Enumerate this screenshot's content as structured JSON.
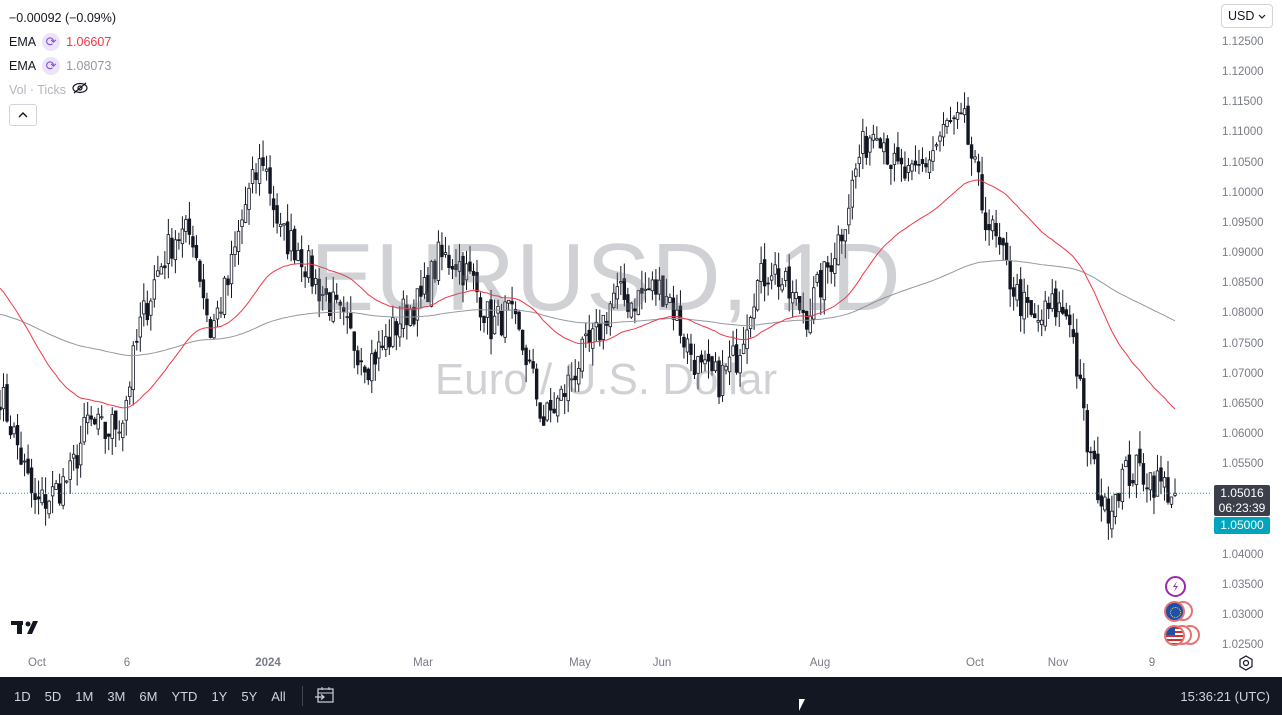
{
  "legend": {
    "change": "−0.00092 (−0.09%)",
    "ema1": {
      "label": "EMA",
      "value": "1.06607",
      "color": "#f23645"
    },
    "ema2": {
      "label": "EMA",
      "value": "1.08073",
      "color": "#9598a1"
    },
    "vol": "Vol · Ticks",
    "vol_icon": "eye-off-icon",
    "collapse_icon": "chevron-up-icon"
  },
  "currency_selector": {
    "value": "USD"
  },
  "watermark": {
    "symbol": "EURUSD, 1D",
    "description": "Euro / U.S. Dollar"
  },
  "price_labels": {
    "last": "1.05016",
    "countdown": "06:23:39",
    "bid": "1.05000"
  },
  "colors": {
    "last_line": "#00a5bd",
    "bid_label": "#00a5bd",
    "ema_fast": "#f23645",
    "ema_slow": "#9598a1"
  },
  "bottom_bar": {
    "ranges": [
      "1D",
      "5D",
      "1M",
      "3M",
      "6M",
      "YTD",
      "1Y",
      "5Y",
      "All"
    ],
    "goto_icon": "calendar-goto-icon",
    "clock": "15:36:21 (UTC)"
  },
  "chart_data": {
    "type": "candlestick",
    "symbol": "EURUSD",
    "interval": "1D",
    "y_ticks": [
      "1.12500",
      "1.12000",
      "1.11500",
      "1.11000",
      "1.10500",
      "1.10000",
      "1.09500",
      "1.09000",
      "1.08500",
      "1.08000",
      "1.07500",
      "1.07000",
      "1.06500",
      "1.06000",
      "1.05500",
      "1.05000",
      "1.04500",
      "1.04000",
      "1.03500",
      "1.03000",
      "1.02500"
    ],
    "ylim": [
      1.025,
      1.125
    ],
    "x_ticks": [
      "Oct",
      "6",
      "2024",
      "Mar",
      "May",
      "Jun",
      "Aug",
      "Oct",
      "Nov",
      "9"
    ],
    "weekly_closes_approx": [
      1.067,
      1.058,
      1.048,
      1.05,
      1.053,
      1.062,
      1.06,
      1.063,
      1.078,
      1.087,
      1.093,
      1.093,
      1.077,
      1.085,
      1.098,
      1.106,
      1.093,
      1.091,
      1.085,
      1.081,
      1.076,
      1.072,
      1.075,
      1.08,
      1.082,
      1.089,
      1.089,
      1.085,
      1.078,
      1.08,
      1.073,
      1.062,
      1.066,
      1.072,
      1.076,
      1.083,
      1.082,
      1.084,
      1.084,
      1.076,
      1.07,
      1.069,
      1.073,
      1.084,
      1.088,
      1.083,
      1.08,
      1.086,
      1.094,
      1.106,
      1.112,
      1.104,
      1.102,
      1.106,
      1.111,
      1.111,
      1.098,
      1.09,
      1.083,
      1.078,
      1.081,
      1.08,
      1.058,
      1.047,
      1.053,
      1.054,
      1.052,
      1.0502
    ],
    "last_price": 1.05016,
    "series": [
      {
        "name": "EMA",
        "last": 1.06607,
        "color": "#f23645"
      },
      {
        "name": "EMA",
        "last": 1.08073,
        "color": "#9598a1"
      }
    ]
  }
}
